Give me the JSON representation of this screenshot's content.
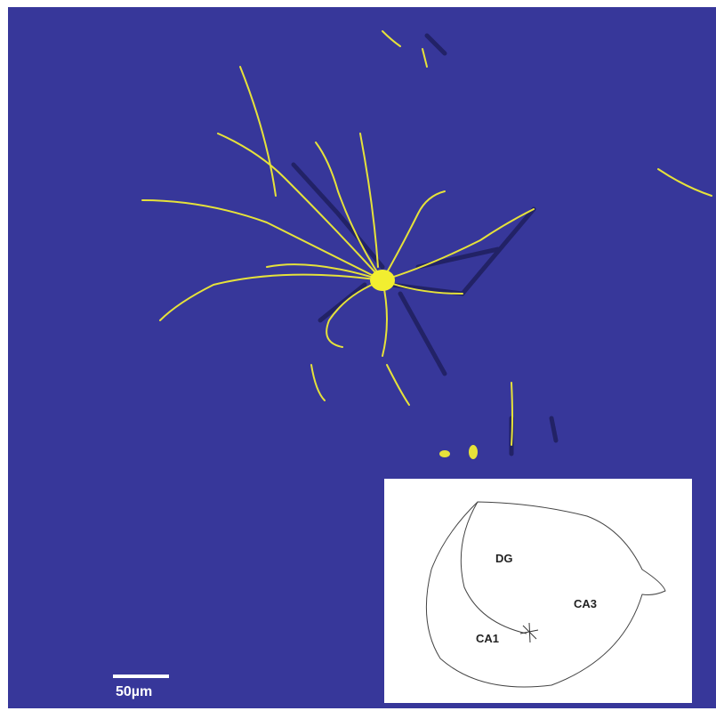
{
  "scale_bar": {
    "label": "50µm"
  },
  "inset": {
    "labels": [
      "DG",
      "CA3",
      "CA1"
    ]
  }
}
